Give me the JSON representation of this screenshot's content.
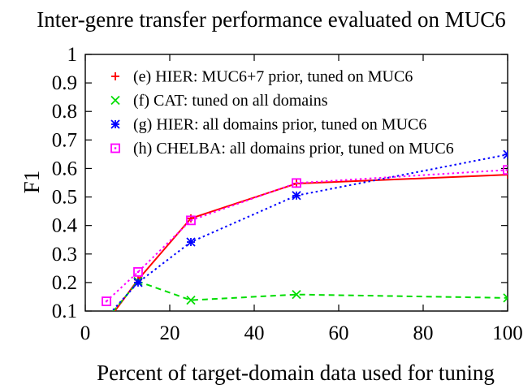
{
  "chart_data": {
    "type": "line",
    "title": "Inter-genre transfer performance evaluated on MUC6",
    "xlabel": "Percent of target-domain data used for tuning",
    "ylabel": "F1",
    "xlim": [
      0,
      100
    ],
    "ylim": [
      0.1,
      1
    ],
    "xticks": [
      "0",
      "20",
      "40",
      "60",
      "80",
      "100"
    ],
    "yticks": [
      "0.1",
      "0.2",
      "0.3",
      "0.4",
      "0.5",
      "0.6",
      "0.7",
      "0.8",
      "0.9",
      "1"
    ],
    "x": [
      5,
      12.5,
      25,
      50,
      100
    ],
    "legend_position": "top-left",
    "grid": false,
    "series": [
      {
        "name": "(e) HIER: MUC6+7 prior, tuned on MUC6",
        "values": [
          0.06,
          0.21,
          0.425,
          0.547,
          0.578
        ],
        "color": "#ff0000",
        "marker": "plus",
        "line": "solid"
      },
      {
        "name": "(f) CAT: tuned on all domains",
        "values": [
          0.07,
          0.204,
          0.138,
          0.158,
          0.146
        ],
        "color": "#00dd00",
        "marker": "cross",
        "line": "dashed"
      },
      {
        "name": "(g) HIER: all domains prior, tuned on MUC6",
        "values": [
          0.078,
          0.2,
          0.342,
          0.505,
          0.649
        ],
        "color": "#0000ff",
        "marker": "star",
        "line": "dotted"
      },
      {
        "name": "(h) CHELBA: all domains prior, tuned on MUC6",
        "values": [
          0.134,
          0.237,
          0.418,
          0.549,
          0.595
        ],
        "color": "#ff00ff",
        "marker": "square",
        "line": "dotted"
      }
    ]
  }
}
